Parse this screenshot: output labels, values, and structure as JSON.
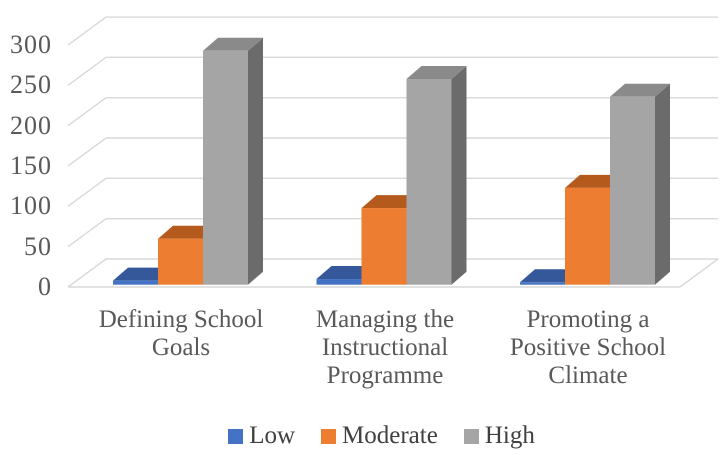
{
  "chart_data": {
    "type": "bar",
    "variant": "3d-clustered-column",
    "categories": [
      "Defining School Goals",
      "Managing the Instructional Programme",
      "Promoting a Positive School Climate"
    ],
    "series": [
      {
        "name": "Low",
        "values": [
          5,
          7,
          3
        ],
        "color": "#4472C4",
        "top_color": "#35589B",
        "side_color": "#2A4578"
      },
      {
        "name": "Moderate",
        "values": [
          57,
          95,
          120
        ],
        "color": "#ED7D31",
        "top_color": "#B55A1D",
        "side_color": "#93491A"
      },
      {
        "name": "High",
        "values": [
          290,
          255,
          233
        ],
        "color": "#A5A5A5",
        "top_color": "#8A8A8A",
        "side_color": "#6B6B6B"
      }
    ],
    "title": "",
    "xlabel": "",
    "ylabel": "",
    "ylim": [
      0,
      300
    ],
    "y_tick_step": 50,
    "y_ticks": [
      300,
      250,
      200,
      150,
      100,
      50,
      0
    ],
    "grid": true,
    "legend_position": "bottom",
    "colors": {
      "axis_text": "#595959",
      "category_text": "#595959",
      "legend_text": "#404040",
      "gridline": "#D9D9D9",
      "background": "#FFFFFF"
    }
  }
}
